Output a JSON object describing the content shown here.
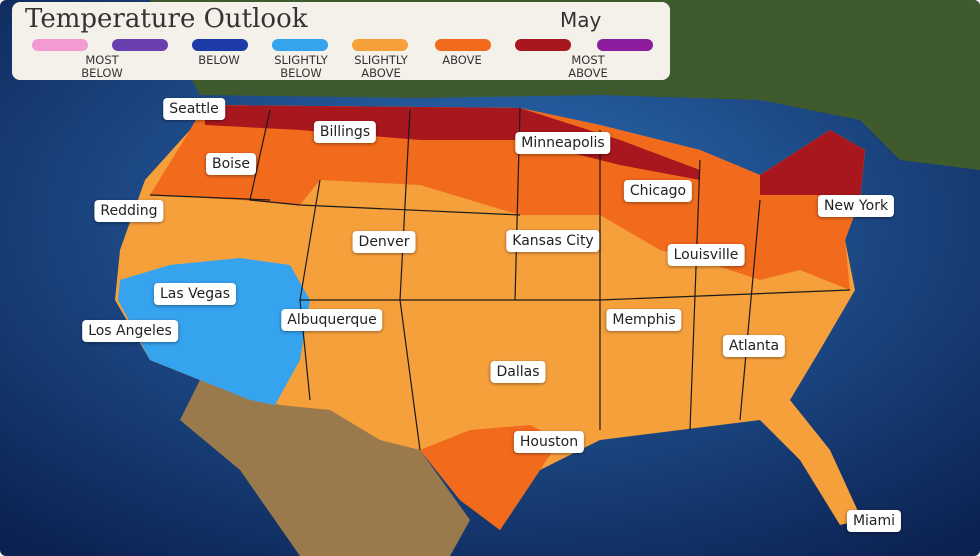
{
  "header": {
    "title": "Temperature Outlook",
    "month": "May"
  },
  "legend": {
    "swatches": [
      "#f39ad3",
      "#6a3fb0",
      "#1c3aa8",
      "#36a3ee",
      "#f6a03c",
      "#f26a1c",
      "#a8171d",
      "#8b1d9e"
    ],
    "labels": [
      "MOST BELOW",
      "BELOW",
      "SLIGHTLY BELOW",
      "SLIGHTLY ABOVE",
      "ABOVE",
      "MOST ABOVE"
    ]
  },
  "cities": [
    "Seattle",
    "Billings",
    "Boise",
    "Minneapolis",
    "Redding",
    "Denver",
    "Kansas City",
    "Chicago",
    "New York",
    "Louisville",
    "Las Vegas",
    "Albuquerque",
    "Los Angeles",
    "Memphis",
    "Atlanta",
    "Dallas",
    "Houston",
    "Miami"
  ]
}
